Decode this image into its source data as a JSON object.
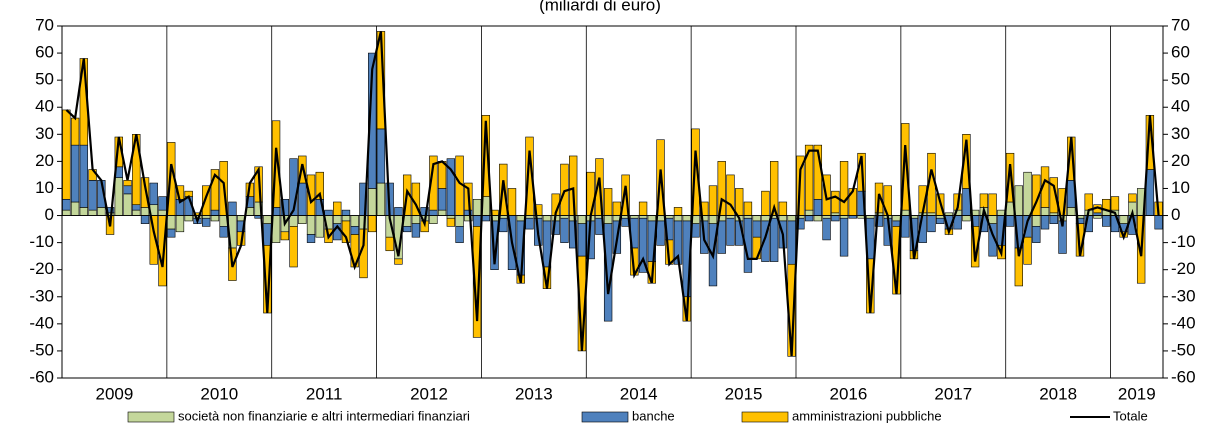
{
  "chart_data": {
    "type": "stacked-bar-line",
    "subtitle": "(miliardi di euro)",
    "years": [
      "2009",
      "2010",
      "2011",
      "2012",
      "2013",
      "2014",
      "2015",
      "2016",
      "2017",
      "2018",
      "2019"
    ],
    "ylim": [
      -60,
      70
    ],
    "yticks": [
      -60,
      -50,
      -40,
      -30,
      -20,
      -10,
      0,
      10,
      20,
      30,
      40,
      50,
      60,
      70
    ],
    "series": [
      {
        "name": "società non finanziarie e altri intermediari finanziari",
        "color": "#c4d79b",
        "kind": "bar",
        "values": [
          2,
          5,
          3,
          2,
          3,
          1,
          14,
          8,
          2,
          3,
          4,
          2,
          -5,
          -6,
          -2,
          -1,
          -1,
          -2,
          -4,
          -12,
          -2,
          3,
          5,
          -3,
          -10,
          -6,
          -4,
          -3,
          -7,
          -8,
          -5,
          -3,
          -2,
          -4,
          -5,
          10,
          12,
          -8,
          -16,
          -4,
          -3,
          -2,
          -3,
          2,
          -1,
          -4,
          -2,
          6,
          7,
          -2,
          -1,
          0,
          -2,
          -1,
          -1,
          -2,
          -2,
          -1,
          -2,
          -3,
          -2,
          -1,
          -3,
          -2,
          -1,
          -1,
          -1,
          -2,
          -2,
          -1,
          -2,
          -2,
          -3,
          -2,
          -3,
          -2,
          -1,
          -2,
          -1,
          -2,
          -2,
          -1,
          -2,
          -2,
          -1,
          2,
          -2,
          -1,
          1,
          -1,
          0,
          -1,
          -1,
          1,
          -1,
          -2,
          2,
          -1,
          1,
          1,
          -1,
          1,
          2,
          -2,
          2,
          3,
          -3,
          2,
          5,
          11,
          16,
          -4,
          3,
          1,
          -2,
          3,
          -1,
          2,
          -1,
          2,
          2,
          -3,
          5,
          10,
          0,
          0
        ]
      },
      {
        "name": "banche",
        "color": "#4f81bd",
        "kind": "bar",
        "values": [
          4,
          21,
          23,
          11,
          10,
          2,
          4,
          3,
          2,
          -3,
          8,
          5,
          -3,
          6,
          7,
          -2,
          -3,
          2,
          -4,
          5,
          -4,
          4,
          -1,
          -8,
          3,
          6,
          21,
          12,
          -3,
          6,
          2,
          -6,
          2,
          -3,
          12,
          50,
          20,
          12,
          3,
          -2,
          -5,
          3,
          2,
          8,
          21,
          -6,
          2,
          -4,
          -2,
          -18,
          -5,
          -20,
          -20,
          -4,
          -10,
          -17,
          -5,
          -9,
          -10,
          -12,
          -14,
          -6,
          -36,
          -12,
          -3,
          -11,
          -20,
          -15,
          -9,
          -8,
          -16,
          -28,
          -5,
          -12,
          -23,
          -12,
          -10,
          -9,
          -20,
          -6,
          -15,
          -16,
          -10,
          -16,
          -4,
          -2,
          6,
          -8,
          -2,
          -14,
          -1,
          9,
          -15,
          -4,
          -10,
          -2,
          -8,
          -12,
          -10,
          -6,
          -2,
          -5,
          -5,
          10,
          -4,
          -6,
          -12,
          -11,
          -4,
          -12,
          -8,
          -6,
          -5,
          -3,
          -12,
          10,
          -2,
          -6,
          1,
          -4,
          -6,
          -3,
          -7,
          0,
          17,
          -5
        ]
      },
      {
        "name": "amministrazioni pubbliche",
        "color": "#ffc000",
        "kind": "bar",
        "values": [
          33,
          10,
          32,
          4,
          0,
          -7,
          11,
          2,
          26,
          11,
          -18,
          -26,
          27,
          5,
          2,
          1,
          11,
          15,
          20,
          -12,
          -5,
          5,
          13,
          -25,
          32,
          -3,
          -15,
          10,
          15,
          10,
          -5,
          5,
          -8,
          -12,
          -18,
          -6,
          36,
          -5,
          -2,
          15,
          12,
          -4,
          20,
          10,
          -3,
          22,
          10,
          -41,
          30,
          2,
          19,
          10,
          -3,
          29,
          4,
          -8,
          8,
          19,
          22,
          -35,
          16,
          21,
          10,
          5,
          15,
          -10,
          5,
          -8,
          28,
          -9,
          3,
          -9,
          32,
          5,
          11,
          20,
          15,
          10,
          5,
          -8,
          9,
          20,
          5,
          -34,
          22,
          24,
          20,
          15,
          8,
          20,
          10,
          14,
          -20,
          11,
          11,
          -25,
          32,
          -3,
          10,
          22,
          8,
          -2,
          6,
          20,
          -15,
          5,
          8,
          -5,
          18,
          -14,
          -10,
          15,
          15,
          13,
          10,
          16,
          -12,
          6,
          3,
          4,
          5,
          -2,
          3,
          -25,
          20,
          5
        ]
      },
      {
        "name": "Totale",
        "color": "#000000",
        "kind": "line",
        "values": [
          39,
          36,
          58,
          17,
          13,
          -4,
          29,
          13,
          30,
          11,
          -6,
          -19,
          19,
          5,
          7,
          -2,
          7,
          15,
          12,
          -19,
          -11,
          12,
          17,
          -36,
          25,
          -3,
          2,
          19,
          5,
          8,
          -8,
          -4,
          -8,
          -19,
          -11,
          54,
          68,
          -1,
          -15,
          9,
          4,
          -3,
          19,
          20,
          17,
          12,
          10,
          -39,
          35,
          -18,
          13,
          -10,
          -25,
          24,
          -7,
          -27,
          1,
          9,
          10,
          -50,
          0,
          14,
          -29,
          -9,
          11,
          -22,
          -16,
          -25,
          17,
          -18,
          -15,
          -39,
          24,
          -9,
          -15,
          6,
          4,
          -1,
          -16,
          -16,
          -8,
          3,
          -7,
          -52,
          17,
          24,
          24,
          6,
          7,
          5,
          9,
          22,
          -36,
          8,
          0,
          -29,
          26,
          -16,
          1,
          17,
          5,
          -6,
          3,
          28,
          -17,
          2,
          -7,
          -14,
          19,
          -15,
          -2,
          5,
          13,
          11,
          -4,
          29,
          -15,
          2,
          3,
          2,
          1,
          -8,
          1,
          -15,
          37,
          0
        ]
      }
    ]
  }
}
